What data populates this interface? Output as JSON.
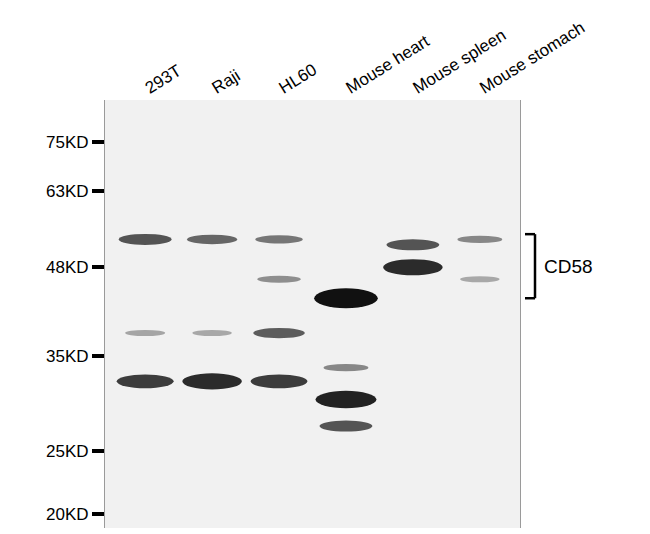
{
  "chart_data": {
    "type": "western_blot",
    "lanes": [
      "293T",
      "Raji",
      "HL60",
      "Mouse heart",
      "Mouse spleen",
      "Mouse stomach"
    ],
    "log": "y",
    "ylim": [
      19,
      87
    ],
    "yticks": [
      {
        "value": 75,
        "label": "75KD"
      },
      {
        "value": 63,
        "label": "63KD"
      },
      {
        "value": 48,
        "label": "48KD"
      },
      {
        "value": 35,
        "label": "35KD"
      },
      {
        "value": 25,
        "label": "25KD"
      },
      {
        "value": 20,
        "label": "20KD"
      }
    ],
    "bands": [
      {
        "lane": 0,
        "kDa": 53,
        "intensity": 0.6
      },
      {
        "lane": 0,
        "kDa": 38,
        "intensity": 0.12
      },
      {
        "lane": 0,
        "kDa": 32,
        "intensity": 0.75
      },
      {
        "lane": 1,
        "kDa": 53,
        "intensity": 0.5
      },
      {
        "lane": 1,
        "kDa": 38,
        "intensity": 0.1
      },
      {
        "lane": 1,
        "kDa": 32,
        "intensity": 0.85
      },
      {
        "lane": 2,
        "kDa": 53,
        "intensity": 0.4
      },
      {
        "lane": 2,
        "kDa": 46,
        "intensity": 0.25
      },
      {
        "lane": 2,
        "kDa": 38,
        "intensity": 0.55
      },
      {
        "lane": 2,
        "kDa": 32,
        "intensity": 0.75
      },
      {
        "lane": 3,
        "kDa": 43,
        "intensity": 1.0
      },
      {
        "lane": 3,
        "kDa": 33.6,
        "intensity": 0.3
      },
      {
        "lane": 3,
        "kDa": 30,
        "intensity": 0.9
      },
      {
        "lane": 3,
        "kDa": 27.3,
        "intensity": 0.6
      },
      {
        "lane": 4,
        "kDa": 52,
        "intensity": 0.6
      },
      {
        "lane": 4,
        "kDa": 48,
        "intensity": 0.85
      },
      {
        "lane": 5,
        "kDa": 53,
        "intensity": 0.3
      },
      {
        "lane": 5,
        "kDa": 46,
        "intensity": 0.1
      }
    ],
    "bracket": {
      "label": "CD58",
      "from": 54,
      "to": 43
    }
  }
}
